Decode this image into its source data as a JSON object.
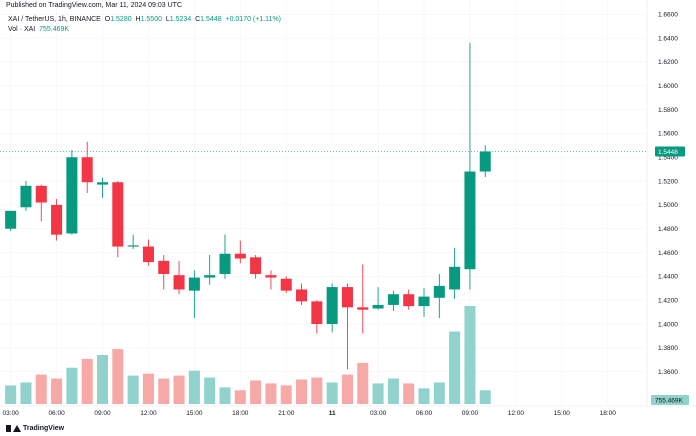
{
  "header": {
    "published": "Published on TradingView.com, Mar 11, 2024 09:03 UTC"
  },
  "legend": {
    "symbol": "XAI / TetherUS, 1h, BINANCE",
    "open_label": "O",
    "open_value": "1.5280",
    "high_label": "H",
    "high_value": "1.5500",
    "low_label": "L",
    "low_value": "1.5234",
    "close_label": "C",
    "close_value": "1.5448",
    "change_value": "+0.0170 (+1.11%)",
    "volume_label": "Vol · XAI",
    "volume_value": "755.469K"
  },
  "footer": {
    "brand": "TradingView"
  },
  "colors": {
    "up": "#089981",
    "down": "#f23645",
    "up_volume": "#92d2cc",
    "down_volume": "#f7a9a7",
    "price_line": "#089981",
    "grid": "#f0f3fa",
    "axis_text": "#131722"
  },
  "chart_data": {
    "type": "candlestick",
    "price_axis": {
      "ylim": [
        1.332,
        1.672
      ],
      "ticks": [
        "1.3600",
        "1.3800",
        "1.4000",
        "1.4200",
        "1.4400",
        "1.4600",
        "1.4800",
        "1.5000",
        "1.5200",
        "1.5400",
        "1.5600",
        "1.5800",
        "1.6000",
        "1.6200",
        "1.6400",
        "1.6600"
      ],
      "last_price_label": "1.5448",
      "last_price": 1.5448
    },
    "volume_axis": {
      "last_volume_label": "755.469K"
    },
    "time_axis": {
      "labels": [
        "03:00",
        "06:00",
        "09:00",
        "12:00",
        "15:00",
        "18:00",
        "21:00",
        "11",
        "03:00",
        "06:00",
        "09:00",
        "12:00",
        "15:00",
        "18:00"
      ],
      "label_bar_index": [
        0,
        3,
        6,
        9,
        12,
        15,
        18,
        21,
        24,
        27,
        30,
        33,
        36,
        39
      ],
      "bold_labels": [
        "11"
      ]
    },
    "bar_count_visible": 42,
    "candles": [
      {
        "o": 1.48,
        "h": 1.495,
        "l": 1.478,
        "c": 1.495,
        "v": 0.19
      },
      {
        "o": 1.498,
        "h": 1.52,
        "l": 1.495,
        "c": 1.516,
        "v": 0.22
      },
      {
        "o": 1.516,
        "h": 1.517,
        "l": 1.486,
        "c": 1.502,
        "v": 0.3
      },
      {
        "o": 1.5,
        "h": 1.505,
        "l": 1.47,
        "c": 1.475,
        "v": 0.26
      },
      {
        "o": 1.476,
        "h": 1.546,
        "l": 1.475,
        "c": 1.54,
        "v": 0.37
      },
      {
        "o": 1.54,
        "h": 1.553,
        "l": 1.51,
        "c": 1.519,
        "v": 0.46
      },
      {
        "o": 1.517,
        "h": 1.523,
        "l": 1.506,
        "c": 1.519,
        "v": 0.5
      },
      {
        "o": 1.519,
        "h": 1.52,
        "l": 1.456,
        "c": 1.465,
        "v": 0.56
      },
      {
        "o": 1.465,
        "h": 1.475,
        "l": 1.463,
        "c": 1.466,
        "v": 0.29
      },
      {
        "o": 1.465,
        "h": 1.471,
        "l": 1.449,
        "c": 1.452,
        "v": 0.31
      },
      {
        "o": 1.453,
        "h": 1.458,
        "l": 1.429,
        "c": 1.442,
        "v": 0.26
      },
      {
        "o": 1.441,
        "h": 1.453,
        "l": 1.425,
        "c": 1.429,
        "v": 0.29
      },
      {
        "o": 1.428,
        "h": 1.445,
        "l": 1.405,
        "c": 1.439,
        "v": 0.34
      },
      {
        "o": 1.439,
        "h": 1.458,
        "l": 1.433,
        "c": 1.441,
        "v": 0.27
      },
      {
        "o": 1.442,
        "h": 1.475,
        "l": 1.438,
        "c": 1.459,
        "v": 0.17
      },
      {
        "o": 1.459,
        "h": 1.47,
        "l": 1.451,
        "c": 1.455,
        "v": 0.14
      },
      {
        "o": 1.456,
        "h": 1.458,
        "l": 1.438,
        "c": 1.442,
        "v": 0.24
      },
      {
        "o": 1.441,
        "h": 1.445,
        "l": 1.429,
        "c": 1.439,
        "v": 0.21
      },
      {
        "o": 1.438,
        "h": 1.44,
        "l": 1.426,
        "c": 1.428,
        "v": 0.19
      },
      {
        "o": 1.429,
        "h": 1.434,
        "l": 1.416,
        "c": 1.419,
        "v": 0.25
      },
      {
        "o": 1.419,
        "h": 1.42,
        "l": 1.392,
        "c": 1.4,
        "v": 0.27
      },
      {
        "o": 1.4,
        "h": 1.434,
        "l": 1.393,
        "c": 1.431,
        "v": 0.22
      },
      {
        "o": 1.431,
        "h": 1.434,
        "l": 1.362,
        "c": 1.414,
        "v": 0.3
      },
      {
        "o": 1.414,
        "h": 1.45,
        "l": 1.392,
        "c": 1.412,
        "v": 0.42
      },
      {
        "o": 1.413,
        "h": 1.431,
        "l": 1.412,
        "c": 1.416,
        "v": 0.21
      },
      {
        "o": 1.416,
        "h": 1.428,
        "l": 1.411,
        "c": 1.425,
        "v": 0.26
      },
      {
        "o": 1.425,
        "h": 1.429,
        "l": 1.412,
        "c": 1.415,
        "v": 0.21
      },
      {
        "o": 1.415,
        "h": 1.43,
        "l": 1.406,
        "c": 1.423,
        "v": 0.16
      },
      {
        "o": 1.422,
        "h": 1.442,
        "l": 1.405,
        "c": 1.432,
        "v": 0.22
      },
      {
        "o": 1.429,
        "h": 1.464,
        "l": 1.421,
        "c": 1.448,
        "v": 0.74
      },
      {
        "o": 1.446,
        "h": 1.636,
        "l": 1.429,
        "c": 1.528,
        "v": 1.0
      },
      {
        "o": 1.528,
        "h": 1.55,
        "l": 1.5234,
        "c": 1.5448,
        "v": 0.14
      }
    ]
  }
}
